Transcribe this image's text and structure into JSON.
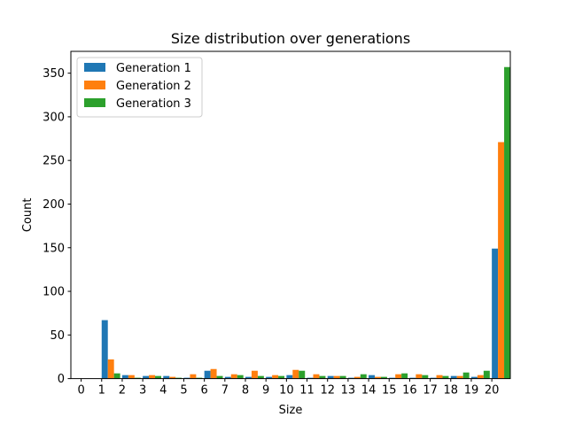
{
  "chart_data": {
    "type": "bar",
    "title": "Size distribution over generations",
    "xlabel": "Size",
    "ylabel": "Count",
    "categories": [
      "0",
      "1",
      "2",
      "3",
      "4",
      "5",
      "6",
      "7",
      "8",
      "9",
      "10",
      "11",
      "12",
      "13",
      "14",
      "15",
      "16",
      "17",
      "18",
      "19",
      "20"
    ],
    "series": [
      {
        "name": "Generation 1",
        "color": "#1f77b4",
        "values": [
          0,
          67,
          4,
          3,
          3,
          1,
          9,
          2,
          2,
          2,
          4,
          1,
          3,
          1,
          4,
          1,
          1,
          1,
          3,
          2,
          149
        ]
      },
      {
        "name": "Generation 2",
        "color": "#ff7f0e",
        "values": [
          0,
          22,
          4,
          4,
          2,
          5,
          11,
          5,
          9,
          4,
          10,
          5,
          3,
          2,
          2,
          5,
          5,
          4,
          3,
          4,
          271
        ]
      },
      {
        "name": "Generation 3",
        "color": "#2ca02c",
        "values": [
          0,
          6,
          1,
          3,
          1,
          1,
          3,
          4,
          3,
          3,
          9,
          3,
          3,
          5,
          2,
          6,
          4,
          3,
          7,
          9,
          357
        ]
      }
    ],
    "yticks": [
      0,
      50,
      100,
      150,
      200,
      250,
      300,
      350
    ],
    "ylim": [
      0,
      375
    ],
    "xlim": [
      -0.5,
      20.9
    ],
    "legend": "top-left",
    "grid": false
  }
}
